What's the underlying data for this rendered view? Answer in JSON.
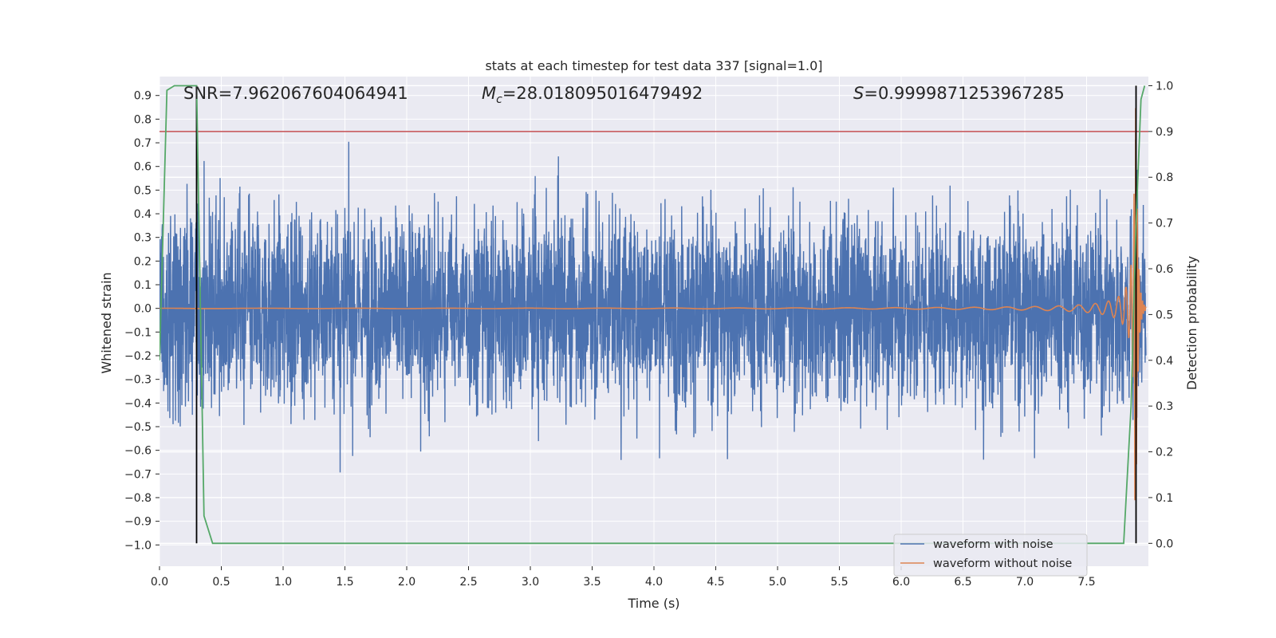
{
  "chart_data": {
    "type": "line",
    "title": "stats at each timestep for test data 337 [signal=1.0]",
    "xlabel": "Time (s)",
    "ylabel_left": "Whitened strain",
    "ylabel_right": "Detection probability",
    "xlim": [
      0.0,
      8.0
    ],
    "ylim_left": [
      -1.09,
      0.98
    ],
    "ylim_right": [
      -0.05,
      1.02
    ],
    "x_ticks": [
      "0.0",
      "0.5",
      "1.0",
      "1.5",
      "2.0",
      "2.5",
      "3.0",
      "3.5",
      "4.0",
      "4.5",
      "5.0",
      "5.5",
      "6.0",
      "6.5",
      "7.0",
      "7.5"
    ],
    "x_tick_values": [
      0.0,
      0.5,
      1.0,
      1.5,
      2.0,
      2.5,
      3.0,
      3.5,
      4.0,
      4.5,
      5.0,
      5.5,
      6.0,
      6.5,
      7.0,
      7.5
    ],
    "y_left_ticks": [
      "0.9",
      "0.8",
      "0.7",
      "0.6",
      "0.5",
      "0.4",
      "0.3",
      "0.2",
      "0.1",
      "0.0",
      "−0.1",
      "−0.2",
      "−0.3",
      "−0.4",
      "−0.5",
      "−0.6",
      "−0.7",
      "−0.8",
      "−0.9",
      "−1.0"
    ],
    "y_left_tick_values": [
      0.9,
      0.8,
      0.7,
      0.6,
      0.5,
      0.4,
      0.3,
      0.2,
      0.1,
      0.0,
      -0.1,
      -0.2,
      -0.3,
      -0.4,
      -0.5,
      -0.6,
      -0.7,
      -0.8,
      -0.9,
      -1.0
    ],
    "y_right_ticks": [
      "1.0",
      "0.9",
      "0.8",
      "0.7",
      "0.6",
      "0.5",
      "0.4",
      "0.3",
      "0.2",
      "0.1",
      "0.0"
    ],
    "y_right_tick_values": [
      1.0,
      0.9,
      0.8,
      0.7,
      0.6,
      0.5,
      0.4,
      0.3,
      0.2,
      0.1,
      0.0
    ],
    "annotations": {
      "snr": "SNR=7.962067604064941",
      "mc_symbol": "M",
      "mc_subscript": "c",
      "mc_value": "=28.018095016479492",
      "s_symbol": "S",
      "s_value": "=0.9999871253967285"
    },
    "threshold_probability": 0.9,
    "threshold_color": "#c44e52",
    "detection_markers_s": [
      0.3,
      7.9
    ],
    "series": [
      {
        "name": "waveform with noise",
        "axis": "left",
        "color": "#4c72b0",
        "description": "whitened noisy strain, roughly within -0.75 to 0.70 with sparse outliers"
      },
      {
        "name": "waveform without noise",
        "axis": "left",
        "color": "#dd8452",
        "description": "chirp signal growing from ~0 amplitude to ~0.9 near merger at 7.9 s",
        "chirp": {
          "merger_time": 7.9,
          "peak_amplitude": 0.9
        }
      },
      {
        "name": "detection probability",
        "axis": "right",
        "color": "#55a868",
        "x": [
          0.0,
          0.06,
          0.12,
          0.3,
          0.36,
          0.43,
          7.8,
          7.86,
          7.9,
          7.94,
          7.97
        ],
        "values": [
          0.4,
          0.99,
          1.0,
          1.0,
          0.06,
          0.0,
          0.0,
          0.3,
          0.7,
          0.97,
          1.0
        ]
      }
    ],
    "legend": {
      "location": "lower-right",
      "entries": [
        {
          "label": "waveform with noise",
          "color": "#4c72b0"
        },
        {
          "label": "waveform without noise",
          "color": "#dd8452"
        }
      ]
    }
  }
}
